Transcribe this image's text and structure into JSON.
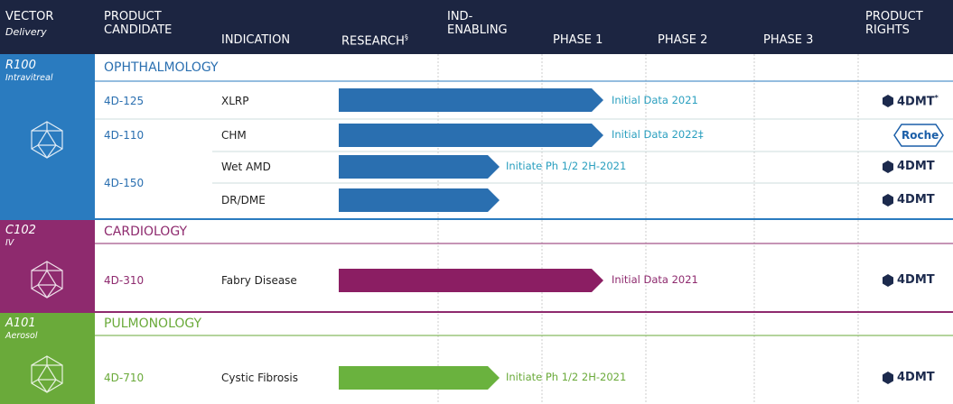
{
  "header": {
    "columns": [
      {
        "title": "VECTOR",
        "subtitle": "Delivery"
      },
      {
        "title": "PRODUCT",
        "title2": "CANDIDATE"
      },
      {
        "title": "INDICATION"
      },
      {
        "title": "RESEARCH",
        "mark": "§"
      },
      {
        "title": "IND-",
        "title2": "ENABLING"
      },
      {
        "title": "PHASE 1"
      },
      {
        "title": "PHASE 2"
      },
      {
        "title": "PHASE 3"
      },
      {
        "title": "PRODUCT",
        "title2": "RIGHTS"
      }
    ]
  },
  "sections": [
    {
      "vector": "R100",
      "delivery": "Intravitreal",
      "area": "OPHTHALMOLOGY",
      "programs": [
        {
          "candidate": "4D-125",
          "indications": [
            {
              "name": "XLRP",
              "milestone": "Initial Data 2021",
              "rights": "4DMT",
              "rights_mark": "*"
            }
          ]
        },
        {
          "candidate": "4D-110",
          "indications": [
            {
              "name": "CHM",
              "milestone": "Initial Data 2022‡",
              "rights": "Roche"
            }
          ]
        },
        {
          "candidate": "4D-150",
          "indications": [
            {
              "name": "Wet AMD",
              "milestone": "Initiate Ph 1/2 2H-2021",
              "rights": "4DMT"
            },
            {
              "name": "DR/DME",
              "rights": "4DMT"
            }
          ]
        }
      ]
    },
    {
      "vector": "C102",
      "delivery": "IV",
      "area": "CARDIOLOGY",
      "programs": [
        {
          "candidate": "4D-310",
          "indications": [
            {
              "name": "Fabry Disease",
              "milestone": "Initial Data 2021",
              "rights": "4DMT"
            }
          ]
        }
      ]
    },
    {
      "vector": "A101",
      "delivery": "Aerosol",
      "area": "PULMONOLOGY",
      "programs": [
        {
          "candidate": "4D-710",
          "indications": [
            {
              "name": "Cystic Fibrosis",
              "milestone": "Initiate Ph 1/2 2H-2021",
              "rights": "4DMT"
            }
          ]
        }
      ]
    }
  ]
}
